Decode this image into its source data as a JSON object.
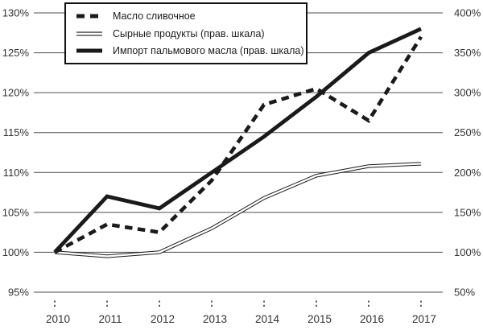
{
  "chart_data": {
    "type": "line",
    "title": "",
    "x_categories": [
      "2010",
      "2011",
      "2012",
      "2013",
      "2014",
      "2015",
      "2016",
      "2017"
    ],
    "left_axis": {
      "ticks_top_to_bottom": [
        "130%",
        "125%",
        "120%",
        "115%",
        "110%",
        "105%",
        "100%",
        "95%"
      ],
      "min": 95,
      "max": 130,
      "step": 5,
      "unit": "%"
    },
    "right_axis": {
      "ticks_top_to_bottom": [
        "400%",
        "350%",
        "300%",
        "250%",
        "200%",
        "150%",
        "100%",
        "50%"
      ],
      "min": 50,
      "max": 400,
      "step": 50,
      "unit": "%"
    },
    "grid": "horizontal",
    "legend_position": "top-left-inside",
    "series": [
      {
        "name": "Масло сливочное",
        "axis": "left",
        "line_style": "thick-dashed",
        "color": "#1a1a1a",
        "values": [
          100,
          103.5,
          102.5,
          109,
          118.5,
          120.5,
          116.5,
          127
        ]
      },
      {
        "name": "Сырные продукты (прав. шкала)",
        "axis": "right",
        "line_style": "double-thin",
        "color": "#1a1a1a",
        "values": [
          100,
          95,
          100,
          130,
          168,
          196,
          208,
          211
        ]
      },
      {
        "name": "Импорт пальмового масла (прав. шкала)",
        "axis": "right",
        "line_style": "thick-solid",
        "color": "#1a1a1a",
        "values": [
          100,
          170,
          155,
          200,
          245,
          295,
          350,
          380
        ]
      }
    ],
    "colors": {
      "line": "#1a1a1a",
      "grid": "#4d4d4d",
      "text": "#333333",
      "background": "#ffffff",
      "legend_border": "#111111"
    }
  }
}
